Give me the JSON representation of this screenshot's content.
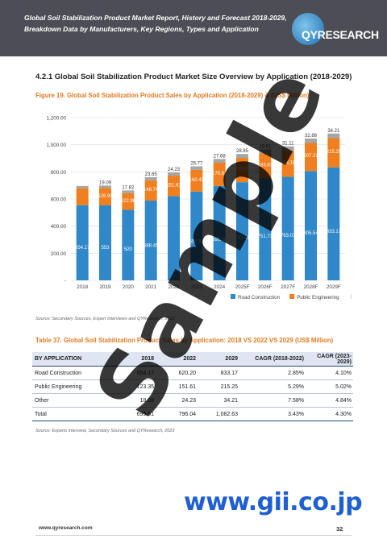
{
  "header": {
    "title_line1": "Global Soil Stabilization Product Market Report, History and Forecast 2018-2029,",
    "title_line2": "Breakdown Data by Manufacturers, Key Regions, Types and Application",
    "logo_text": "QYRESEARCH"
  },
  "section_heading": "4.2.1   Global Soil Stabilization Product Market Size Overview by Application (2018-2029)",
  "figure_caption": "Figure 19.   Global Soil Stabilization Product Sales by Application (2018-2029) & (US$ Million)",
  "chart_data": {
    "type": "bar",
    "stacked": true,
    "categories": [
      "2018",
      "2019",
      "2020",
      "2021",
      "2022",
      "2023",
      "2024",
      "2025F",
      "2026F",
      "2027F",
      "2028F",
      "2029F"
    ],
    "series": [
      {
        "name": "Road Construction",
        "color": "#2e88c9",
        "values": [
          554.17,
          553,
          520,
          588.45,
          620.2,
          654.54,
          696.18,
          723.66,
          751.73,
          763.07,
          805.54,
          833.17
        ],
        "labels": [
          "554.17",
          "553",
          "520",
          "588.45",
          "",
          "654.54",
          "696.18",
          "723.66",
          "751.73",
          "763.07",
          "805.54",
          "833.17"
        ]
      },
      {
        "name": "Public Engineering",
        "color": "#f07f1f",
        "values": [
          123.35,
          126.9,
          122.96,
          148.74,
          151.61,
          160.42,
          170.91,
          179.03,
          183.87,
          194.18,
          207.27,
          215.25
        ],
        "labels": [
          "",
          "126.90",
          "122.96",
          "148.74",
          "151.61",
          "160.42",
          "170.91",
          "179.03",
          "183.87",
          "194.18",
          "207.27",
          "215.25"
        ]
      },
      {
        "name": "Other",
        "color": "#a6a6a6",
        "values": [
          18.09,
          19,
          20,
          23.65,
          24.23,
          25.77,
          27.68,
          28.85,
          29.61,
          31.11,
          32.88,
          34.21
        ],
        "labels": [
          "",
          "",
          "",
          "23.65",
          "24.23",
          "25.77",
          "27.68",
          "28.85",
          "29.61",
          "31.11",
          "32.88",
          "34.21"
        ]
      }
    ],
    "top_labels": [
      "",
      "19.09",
      "17.82"
    ],
    "ylim": [
      0,
      1200
    ],
    "yticks": [
      "-",
      "200.00",
      "400.00",
      "600.00",
      "800.00",
      "1,000.00",
      "1,200.00"
    ],
    "grid": true,
    "legend": "bottom-right"
  },
  "chart_source": "Source: Secondary Sources, Expert Interviews and QYResearch, 2023",
  "table_caption": "Table 37.   Global Soil Stabilization Product Sales by Application: 2018 VS 2022 VS 2029 (US$ Million)",
  "table": {
    "headers": [
      "BY APPLICATION",
      "2018",
      "2022",
      "2029",
      "CAGR (2018-2022)",
      "CAGR (2023-2029)"
    ],
    "rows": [
      [
        "Road Construction",
        "554.17",
        "620.20",
        "833.17",
        "2.85%",
        "4.10%"
      ],
      [
        "Public Engineering",
        "123.35",
        "151.61",
        "215.25",
        "5.29%",
        "5.02%"
      ],
      [
        "Other",
        "18.09",
        "24.23",
        "34.21",
        "7.58%",
        "4.84%"
      ]
    ],
    "total": [
      "Total",
      "695.61",
      "796.04",
      "1,082.63",
      "3.43%",
      "4.30%"
    ]
  },
  "table_source": "Source: Experts Interview, Secondary Sources and QYResearch, 2023",
  "footer": {
    "url": "www.qyresearch.com",
    "page": "32"
  },
  "watermark": "Sample",
  "gii_watermark": "www.gii.co.jp"
}
